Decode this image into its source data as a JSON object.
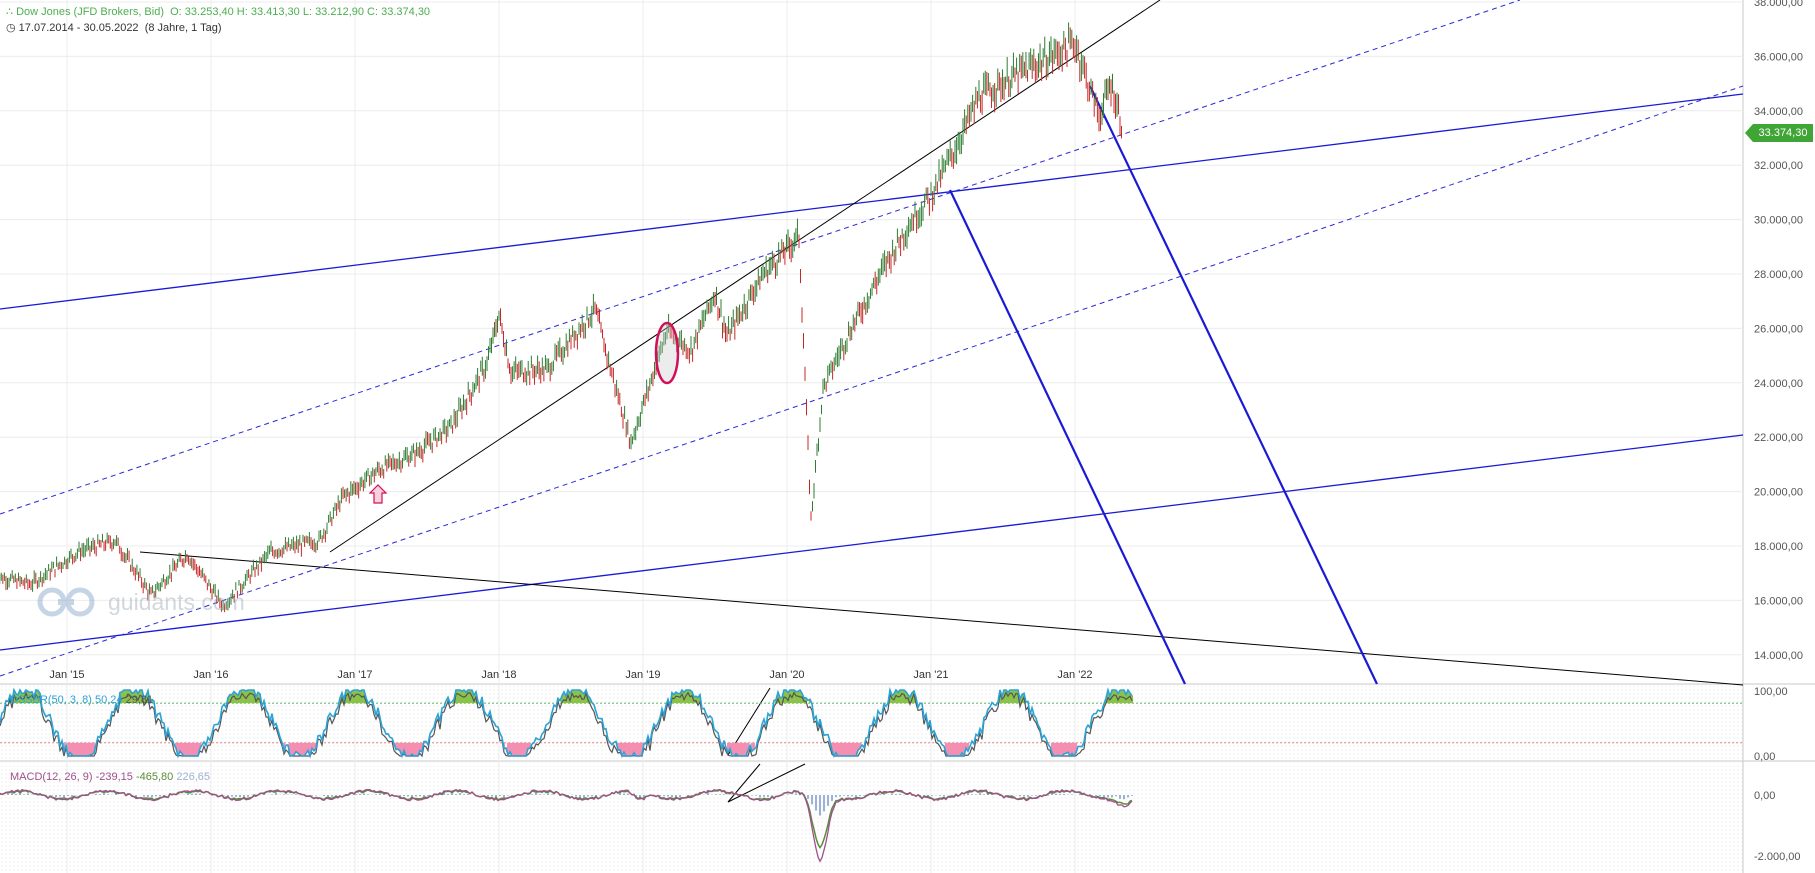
{
  "header": {
    "instrument": "Dow Jones (JFD Brokers, Bid)",
    "ohlc": "O: 33.253,40   H: 33.413,30   L: 33.212,90   C: 33.374,30",
    "range": "17.07.2014 - 30.05.2022",
    "range_detail": "(8 Jahre, 1 Tag)"
  },
  "price_badge": "33.374,30",
  "watermark": "guidants.com",
  "colors": {
    "up_candle": "#2e7d32",
    "down_candle": "#c62828",
    "trendline_blue": "#1a1ad6",
    "trendline_black": "#000000",
    "badge": "#3fa535",
    "dssbr_line": "#2aa3d6",
    "dssbr_signal": "#555555",
    "macd_line": "#a0508c",
    "macd_signal": "#5b8c3a",
    "macd_hist": "#9ab3d6",
    "highlight_ellipse": "#d0105a"
  },
  "icons": {
    "clock": "clock-icon",
    "up_arrow_marker": "up-arrow-icon",
    "logo": "guidants-logo-icon"
  },
  "chart_data": [
    {
      "type": "line",
      "title": "Dow Jones (JFD Brokers, Bid)",
      "xlabel": "",
      "ylabel": "",
      "ylim": [
        13000,
        38000
      ],
      "y_scale": "linear",
      "x_ticks": [
        "Jan '15",
        "Jan '16",
        "Jan '17",
        "Jan '18",
        "Jan '19",
        "Jan '20",
        "Jan '21",
        "Jan '22"
      ],
      "y_ticks": [
        "14.000,00",
        "16.000,00",
        "18.000,00",
        "20.000,00",
        "22.000,00",
        "24.000,00",
        "26.000,00",
        "28.000,00",
        "30.000,00",
        "32.000,00",
        "34.000,00",
        "36.000,00",
        "38.000,00"
      ],
      "grid": true,
      "series": [
        {
          "x": [
            "2014-07",
            "2014-10",
            "2015-02",
            "2015-05",
            "2015-08",
            "2015-11",
            "2016-02",
            "2016-06",
            "2016-10",
            "2016-12",
            "2017-03",
            "2017-06",
            "2017-09",
            "2017-12",
            "2018-01",
            "2018-02",
            "2018-05",
            "2018-09",
            "2018-10",
            "2018-12",
            "2019-03",
            "2019-05",
            "2019-07",
            "2019-08",
            "2019-11",
            "2020-02",
            "2020-03",
            "2020-04",
            "2020-06",
            "2020-09",
            "2020-11",
            "2021-01",
            "2021-03",
            "2021-05",
            "2021-08",
            "2021-11",
            "2022-01",
            "2022-03",
            "2022-04",
            "2022-05"
          ],
          "values": [
            16900,
            16600,
            17800,
            18200,
            16200,
            17700,
            15800,
            17800,
            18200,
            19800,
            20800,
            21400,
            22400,
            24700,
            26500,
            24400,
            24500,
            26700,
            25000,
            21800,
            25900,
            25200,
            27300,
            25700,
            28000,
            29400,
            19000,
            23800,
            25700,
            28200,
            29700,
            30900,
            32600,
            34500,
            35300,
            36000,
            36500,
            33800,
            35000,
            33374
          ]
        }
      ],
      "annotations": [
        "trendlines",
        "parallel channel (dashed)",
        "highlight ellipse Jan '19",
        "up arrow marker"
      ]
    },
    {
      "type": "line",
      "title": "DSSBR(50, 3, 8)",
      "values_label": [
        "50,24",
        "29,81"
      ],
      "ylim": [
        0,
        100
      ],
      "y_ticks": [
        "100,00",
        "0,00"
      ],
      "levels": [
        80,
        20
      ]
    },
    {
      "type": "line",
      "title": "MACD(12, 26, 9)",
      "values_label": [
        "-239,15",
        "-465,80",
        "226,65"
      ],
      "ylim": [
        -2200,
        600
      ],
      "y_ticks": [
        "0,00",
        "-2.000,00"
      ]
    }
  ],
  "indicators": {
    "dssbr_label": "DSSBR(50, 3, 8)",
    "dssbr_val1": "50,24",
    "dssbr_val2": "29,81",
    "macd_label": "MACD(12, 26, 9)",
    "macd_val1": "-239,15",
    "macd_val2": "-465,80",
    "macd_val3": "226,65"
  }
}
